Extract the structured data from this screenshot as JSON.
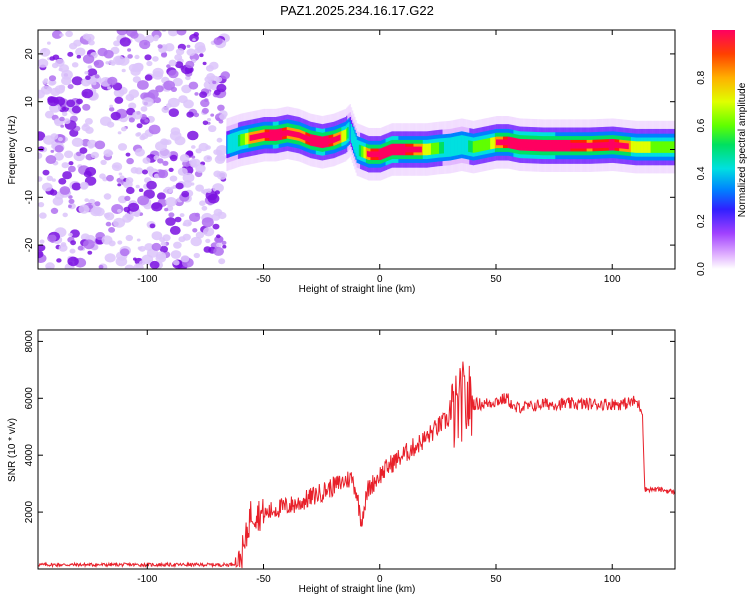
{
  "title": "PAZ1.2025.234.16.17.G22",
  "chart_data": [
    {
      "type": "heatmap",
      "name": "spectrogram",
      "xlabel": "Height of straight line (km)",
      "ylabel": "Frequency (Hz)",
      "xlim": [
        -147,
        127
      ],
      "ylim": [
        -25,
        25
      ],
      "xticks": [
        -100,
        -50,
        0,
        50,
        100
      ],
      "yticks": [
        -20,
        -10,
        0,
        10,
        20
      ],
      "noise_region_x": [
        -147,
        -66
      ],
      "ridge": {
        "x": [
          -66,
          -60,
          -55,
          -50,
          -45,
          -40,
          -35,
          -30,
          -25,
          -20,
          -15,
          -13,
          -10,
          -5,
          0,
          5,
          10,
          15,
          20,
          25,
          30,
          35,
          40,
          45,
          50,
          55,
          60,
          70,
          80,
          90,
          100,
          110,
          127
        ],
        "freq": [
          1,
          2,
          2.5,
          3,
          3,
          3.5,
          3,
          2,
          1.5,
          2,
          3,
          4,
          0,
          -1,
          -1,
          0,
          0,
          0,
          0,
          0.3,
          0.5,
          1,
          0.5,
          1,
          1.5,
          1.5,
          1,
          0.8,
          0.8,
          0.8,
          1,
          0.5,
          0.5
        ],
        "amp": [
          0.5,
          0.7,
          0.9,
          0.9,
          1.0,
          0.9,
          0.85,
          0.95,
          1.0,
          0.9,
          0.8,
          0.5,
          0.6,
          0.9,
          0.95,
          1.0,
          0.95,
          0.9,
          0.8,
          0.7,
          0.6,
          0.6,
          0.7,
          0.7,
          0.85,
          0.95,
          1.0,
          1.0,
          0.95,
          0.9,
          0.95,
          0.8,
          0.7
        ]
      },
      "colorbar": {
        "label": "Normalized spectral amplitude",
        "range": [
          0,
          1
        ],
        "ticks": [
          0.0,
          0.2,
          0.4,
          0.6,
          0.8
        ],
        "tick_labels": [
          "0.0",
          "0.2",
          "0.4",
          "0.6",
          "0.8"
        ]
      }
    },
    {
      "type": "line",
      "name": "snr",
      "xlabel": "Height of straight line (km)",
      "ylabel": "SNR (10 * v/v)",
      "xlim": [
        -147,
        127
      ],
      "ylim": [
        0,
        8400
      ],
      "xticks": [
        -100,
        -50,
        0,
        50,
        100
      ],
      "yticks": [
        2000,
        4000,
        6000,
        8000
      ],
      "color": "#e8202a",
      "series": [
        {
          "name": "SNR",
          "x": [
            -147,
            -120,
            -100,
            -80,
            -65,
            -62,
            -60,
            -58,
            -56,
            -55,
            -50,
            -45,
            -40,
            -35,
            -30,
            -25,
            -20,
            -15,
            -12,
            -10,
            -8,
            -5,
            0,
            5,
            10,
            15,
            20,
            25,
            30,
            33,
            35,
            36,
            37,
            38,
            40,
            45,
            50,
            55,
            58,
            60,
            65,
            70,
            80,
            90,
            100,
            105,
            110,
            112,
            113,
            114,
            120,
            127
          ],
          "y": [
            150,
            150,
            150,
            150,
            150,
            200,
            400,
            800,
            1800,
            2000,
            1900,
            2100,
            2200,
            2300,
            2500,
            2700,
            2900,
            3100,
            3200,
            2700,
            1700,
            2800,
            3300,
            3700,
            4000,
            4300,
            4600,
            5000,
            5300,
            5500,
            5800,
            6000,
            5700,
            5900,
            5800,
            5800,
            5900,
            6000,
            5600,
            5700,
            5700,
            5800,
            5800,
            5800,
            5800,
            5800,
            5900,
            5700,
            5500,
            2800,
            2800,
            2700
          ]
        }
      ]
    }
  ]
}
